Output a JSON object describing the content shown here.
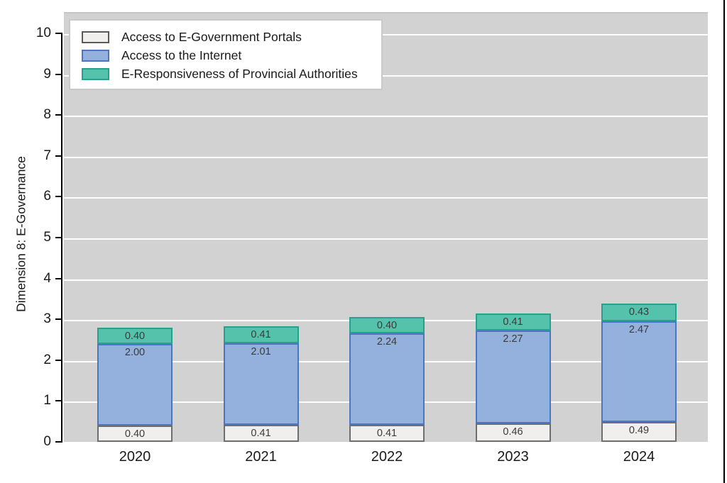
{
  "figure": {
    "background": "#ffffff",
    "right_border_color": "#000000"
  },
  "chart_data": {
    "type": "bar",
    "stacked": true,
    "title": "",
    "xlabel": "",
    "ylabel": "Dimension 8: E-Governance",
    "ylim": [
      0,
      10
    ],
    "ytick_step": 1,
    "grid": true,
    "legend_position": "top-left",
    "plot_background": "#d2d2d2",
    "gridline_color": "#ffffff",
    "axis_color": "#000000",
    "segment_label_color": "#3b3b3b",
    "categories": [
      "2020",
      "2021",
      "2022",
      "2023",
      "2024"
    ],
    "series": [
      {
        "name": "Access to E-Government Portals",
        "fill": "#f0efed",
        "border": "#6e6e6e",
        "values": [
          0.4,
          0.41,
          0.41,
          0.46,
          0.49
        ]
      },
      {
        "name": "Access to the Internet",
        "fill": "#94b0dc",
        "border": "#4a77c4",
        "values": [
          2.0,
          2.01,
          2.24,
          2.27,
          2.47
        ]
      },
      {
        "name": "E-Responsiveness of Provincial Authorities",
        "fill": "#55c2ac",
        "border": "#27a18e",
        "values": [
          0.4,
          0.41,
          0.4,
          0.41,
          0.43
        ]
      }
    ]
  }
}
